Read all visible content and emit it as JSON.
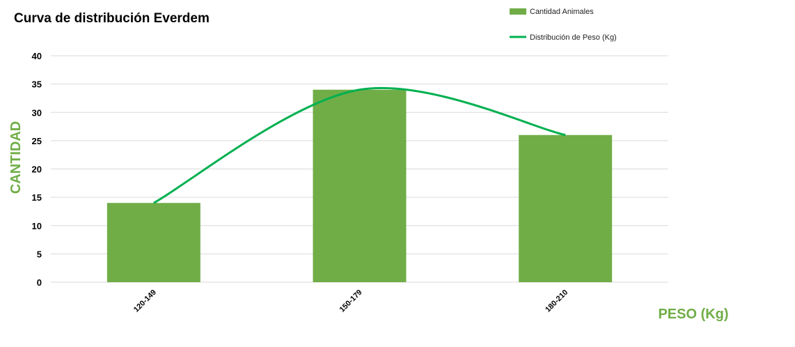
{
  "chart_data": {
    "type": "bar",
    "title": "Curva de distribución Everdem",
    "xlabel": "PESO (Kg)",
    "ylabel": "CANTIDAD",
    "categories": [
      "120-149",
      "150-179",
      "180-210"
    ],
    "series": [
      {
        "name": "Cantidad Animales",
        "type": "bar",
        "values": [
          14,
          34,
          26
        ],
        "color": "#70ad47"
      },
      {
        "name": "Distribución de Peso (Kg)",
        "type": "line",
        "values": [
          14,
          34,
          26
        ],
        "color": "#00b050"
      }
    ],
    "ylim": [
      0,
      40
    ],
    "yticks": [
      0,
      5,
      10,
      15,
      20,
      25,
      30,
      35,
      40
    ],
    "grid": true,
    "legend_position": "top-right",
    "axis_label_color": "#70ad47"
  }
}
